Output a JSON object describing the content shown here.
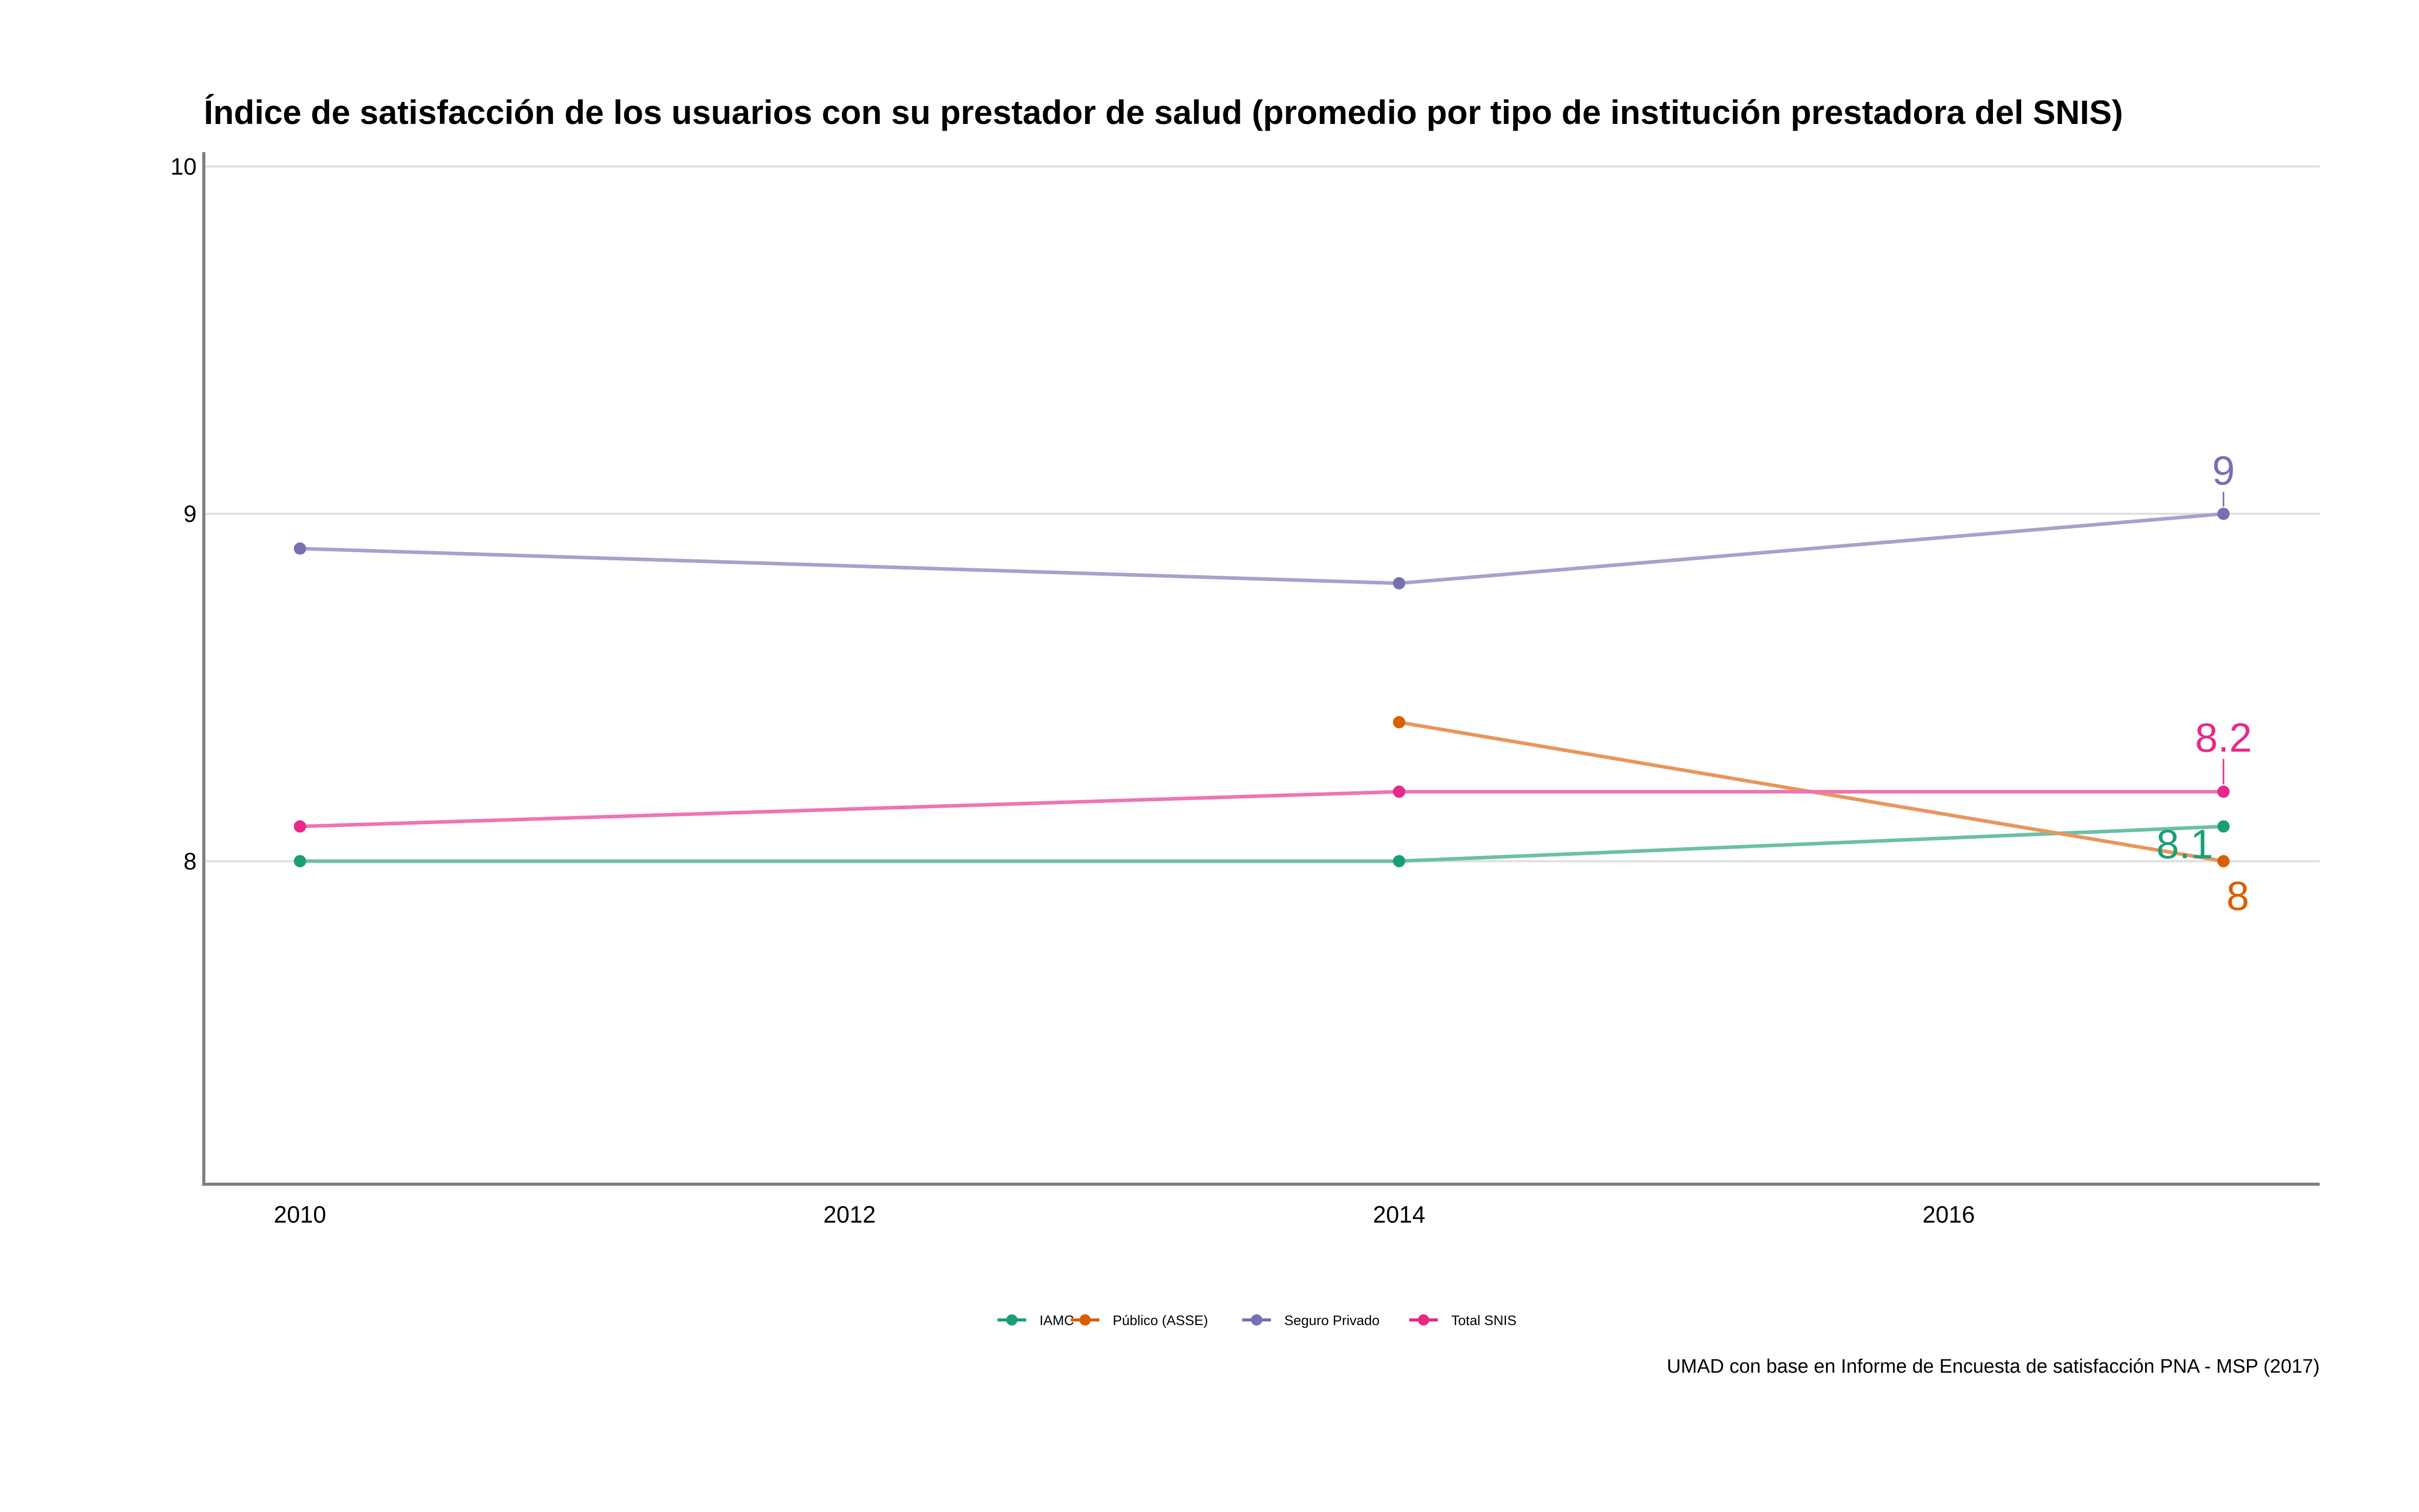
{
  "chart_data": {
    "type": "line",
    "title": "Índice de satisfacción de los usuarios con su prestador de salud (promedio por tipo de institución prestadora del SNIS)",
    "xlabel": "",
    "ylabel": "",
    "caption": "UMAD con base en Informe de Encuesta de satisfacción PNA - MSP (2017)",
    "xlim": [
      2009.65,
      2017.35
    ],
    "ylim": [
      7.07,
      10.0
    ],
    "x_ticks": [
      2010,
      2012,
      2014,
      2016
    ],
    "y_ticks": [
      8,
      9,
      10
    ],
    "x_tick_labels": [
      "2010",
      "2012",
      "2014",
      "2016"
    ],
    "y_tick_labels": [
      "8",
      "9",
      "10"
    ],
    "grid": "horizontal major lines",
    "legend_position": "bottom",
    "series": [
      {
        "name": "IAMC",
        "color": "#1B9E77",
        "x": [
          2010,
          2014,
          2017
        ],
        "y": [
          8.0,
          8.0,
          8.1
        ],
        "end_label": "8.1"
      },
      {
        "name": "Público (ASSE)",
        "color": "#D95F02",
        "x": [
          2014,
          2017
        ],
        "y": [
          8.4,
          8.0
        ],
        "end_label": "8"
      },
      {
        "name": "Seguro Privado",
        "color": "#7570B3",
        "x": [
          2010,
          2014,
          2017
        ],
        "y": [
          8.9,
          8.8,
          9.0
        ],
        "end_label": "9"
      },
      {
        "name": "Total SNIS",
        "color": "#E7298A",
        "x": [
          2010,
          2014,
          2017
        ],
        "y": [
          8.1,
          8.2,
          8.2
        ],
        "end_label": "8.2"
      }
    ]
  }
}
